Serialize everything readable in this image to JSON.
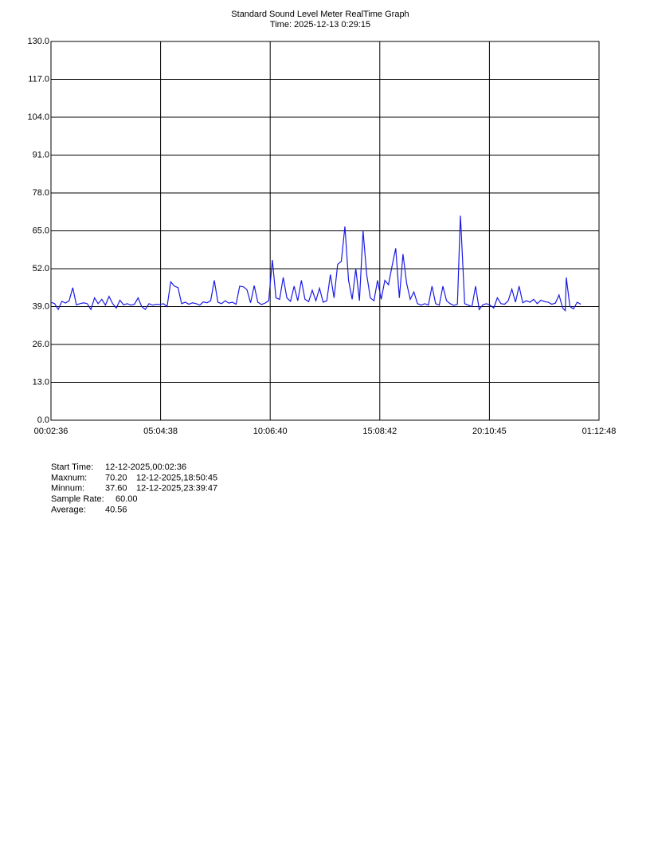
{
  "chart_data": {
    "type": "line",
    "title": "Standard Sound Level Meter RealTime Graph",
    "subtitle": "Time: 2025-12-13  0:29:15",
    "color": "#1a1ae6",
    "grid": true,
    "xlim": [
      156,
      90768
    ],
    "xticks": [
      {
        "value": 156,
        "label": "00:02:36"
      },
      {
        "value": 18278,
        "label": "05:04:38"
      },
      {
        "value": 36400,
        "label": "10:06:40"
      },
      {
        "value": 54522,
        "label": "15:08:42"
      },
      {
        "value": 72645,
        "label": "20:10:45"
      },
      {
        "value": 90768,
        "label": "01:12:48"
      }
    ],
    "ylim": [
      0,
      130
    ],
    "yticks": [
      {
        "value": 0,
        "label": "0.0"
      },
      {
        "value": 13,
        "label": "13.0"
      },
      {
        "value": 26,
        "label": "26.0"
      },
      {
        "value": 39,
        "label": "39.0"
      },
      {
        "value": 52,
        "label": "52.0"
      },
      {
        "value": 65,
        "label": "65.0"
      },
      {
        "value": 78,
        "label": "78.0"
      },
      {
        "value": 91,
        "label": "91.0"
      },
      {
        "value": 104,
        "label": "104.0"
      },
      {
        "value": 117,
        "label": "117.0"
      },
      {
        "value": 130,
        "label": "130.0"
      }
    ],
    "x": [
      156,
      756,
      1356,
      1956,
      2556,
      3156,
      3756,
      4356,
      4956,
      5556,
      6156,
      6756,
      7356,
      7956,
      8556,
      9156,
      9756,
      10356,
      10956,
      11556,
      12156,
      12756,
      13356,
      13956,
      14556,
      15156,
      15756,
      16356,
      16956,
      17556,
      18156,
      18756,
      19356,
      19956,
      20556,
      21156,
      21756,
      22356,
      22956,
      23556,
      24156,
      24756,
      25356,
      25956,
      26556,
      27156,
      27756,
      28356,
      28956,
      29556,
      30156,
      30756,
      31356,
      31956,
      32556,
      33156,
      33756,
      34356,
      34956,
      35556,
      36156,
      36756,
      37356,
      37956,
      38556,
      39156,
      39756,
      40356,
      40956,
      41556,
      42156,
      42756,
      43356,
      43956,
      44556,
      45156,
      45756,
      46356,
      46956,
      47556,
      48156,
      48756,
      49356,
      49956,
      50556,
      51156,
      51756,
      52356,
      52956,
      53556,
      54156,
      54756,
      55356,
      55956,
      56556,
      57156,
      57756,
      58356,
      58956,
      59556,
      60156,
      60756,
      61356,
      61956,
      62556,
      63156,
      63756,
      64356,
      64956,
      65556,
      66156,
      66756,
      67356,
      67845,
      67956,
      68556,
      69156,
      69756,
      70356,
      70956,
      71556,
      72156,
      72756,
      73356,
      73956,
      74556,
      75156,
      75756,
      76356,
      76956,
      77556,
      78156,
      78756,
      79356,
      79956,
      80556,
      81156,
      81756,
      82356,
      82956,
      83556,
      84156,
      84756,
      85187,
      85356,
      85956,
      86556,
      87156,
      87756
    ],
    "values": [
      40.5,
      40,
      38,
      40.8,
      40.2,
      41,
      45.5,
      39.6,
      40,
      40.3,
      40,
      38,
      42,
      40,
      41.5,
      39.5,
      42.5,
      40,
      38.5,
      41.2,
      39.6,
      40,
      39.5,
      39.8,
      42,
      39,
      38,
      40,
      39.5,
      39.8,
      39.7,
      40,
      39,
      47.5,
      46,
      45.5,
      40,
      40.5,
      39.8,
      40.3,
      40,
      39.5,
      40.6,
      40.3,
      41,
      48,
      40.5,
      40,
      41,
      40.2,
      40.5,
      39.8,
      46,
      45.8,
      44.8,
      40.3,
      46.2,
      40.5,
      39.7,
      40.2,
      41,
      55,
      42,
      41.5,
      49,
      42,
      40.8,
      46,
      41,
      48,
      41.5,
      40.7,
      44.6,
      41,
      45.3,
      40.5,
      41,
      50,
      42,
      53.5,
      54.5,
      66.5,
      48,
      41.5,
      52,
      41,
      65,
      50,
      42,
      41,
      48,
      41.5,
      48,
      46.5,
      53,
      59,
      42,
      57,
      47,
      41.5,
      44,
      40,
      39.5,
      40,
      39.5,
      46,
      40,
      39.5,
      46,
      41,
      40,
      39.4,
      39.8,
      70.2,
      66,
      40,
      39.5,
      39,
      46,
      38,
      39.6,
      40,
      39.5,
      38.5,
      42,
      40,
      39.8,
      41,
      45,
      40.5,
      46,
      40.3,
      41,
      40.5,
      41.5,
      40,
      41.2,
      40.7,
      40.5,
      39.8,
      40.2,
      43,
      38.5,
      37.6,
      49,
      39,
      38.2,
      40.5,
      39.8
    ],
    "stats": [
      {
        "label": "Start Time:",
        "value": "12-12-2025,00:02:36"
      },
      {
        "label": "Maxnum:",
        "value": "70.20",
        "time": "12-12-2025,18:50:45"
      },
      {
        "label": "Minnum:",
        "value": "37.60",
        "time": "12-12-2025,23:39:47"
      },
      {
        "label": "Sample Rate:",
        "value": "60.00"
      },
      {
        "label": "Average:",
        "value": "40.56"
      }
    ]
  }
}
